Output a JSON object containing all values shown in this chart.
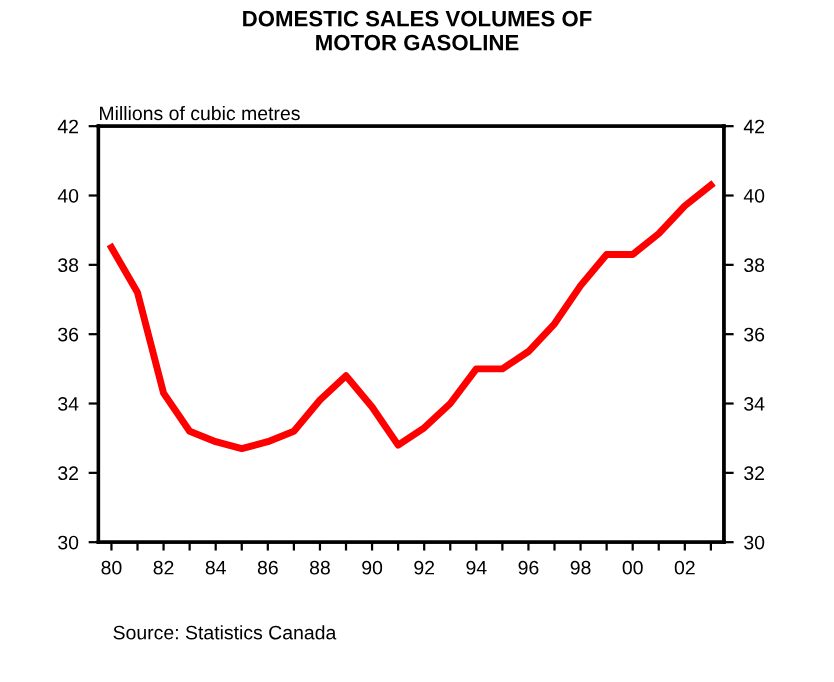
{
  "chart_data": {
    "type": "line",
    "title": "DOMESTIC SALES VOLUMES OF\nMOTOR GASOLINE",
    "ylabel": "Millions of cubic metres",
    "categories": [
      "80",
      null,
      "82",
      null,
      "84",
      null,
      "86",
      null,
      "88",
      null,
      "90",
      null,
      "92",
      null,
      "94",
      null,
      "96",
      null,
      "98",
      null,
      "00",
      null,
      "02",
      null
    ],
    "series": [
      {
        "color": "#ff0000",
        "values": [
          38.5,
          37.2,
          34.3,
          33.2,
          32.9,
          32.7,
          32.9,
          33.2,
          34.1,
          34.8,
          33.9,
          32.8,
          33.3,
          34.0,
          35.0,
          35.0,
          35.5,
          36.3,
          37.4,
          38.3,
          38.3,
          38.9,
          39.7,
          40.3
        ]
      }
    ],
    "ylim": [
      30,
      42
    ],
    "yticks": [
      30,
      32,
      34,
      36,
      38,
      40,
      42
    ],
    "y2lim": [
      30,
      42
    ],
    "y2ticks": [
      30,
      32,
      34,
      36,
      38,
      40,
      42
    ],
    "grid": false,
    "legend": false,
    "marker": "none",
    "line_style": "solid",
    "annotations": [
      "Source: Statistics Canada"
    ]
  }
}
